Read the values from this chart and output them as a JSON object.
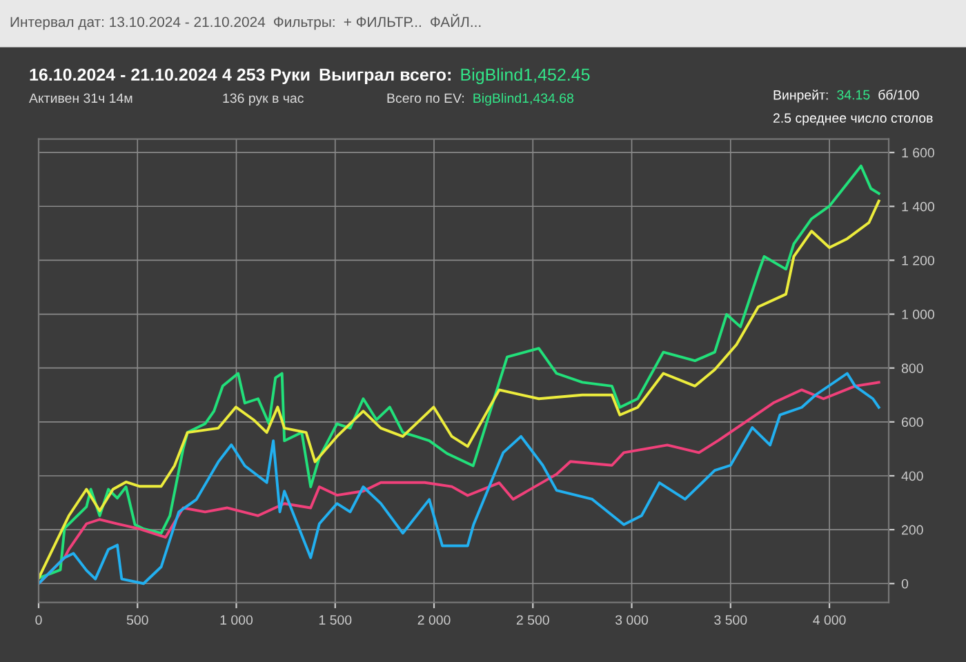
{
  "chart_data": {
    "type": "line",
    "annotations": [
      "Интервал дат: 13.10.2024 - 21.10.2024",
      "Фильтры:",
      "+ ФИЛЬТР...",
      "ФАЙЛ...",
      "16.10.2024 - 21.10.2024",
      "Активен 31ч 14м",
      "4 253 Руки",
      "136 рук в час",
      "Выиграл всего:",
      "BigBlind1,452.45",
      "Всего по EV:",
      "BigBlind1,434.68",
      "Винрейт:",
      "34.15",
      "бб/100",
      "2.5 среднее число столов"
    ],
    "series": [
      {
        "color": "#22e07a",
        "x": [
          0,
          110,
          131,
          176,
          242,
          264,
          309,
          353,
          398,
          442,
          487,
          531,
          620,
          664,
          731,
          753,
          842,
          887,
          931,
          1009,
          1043,
          1110,
          1165,
          1198,
          1231,
          1243,
          1331,
          1376,
          1420,
          1509,
          1576,
          1642,
          1709,
          1776,
          1842,
          1909,
          1976,
          2065,
          2198,
          2370,
          2530,
          2620,
          2750,
          2900,
          2940,
          3030,
          3160,
          3320,
          3420,
          3480,
          3550,
          3640,
          3670,
          3780,
          3820,
          3910,
          4000,
          4100,
          4160,
          4210,
          4250
        ],
        "values": [
          20,
          51,
          205,
          238,
          285,
          350,
          252,
          350,
          317,
          359,
          219,
          203,
          187,
          252,
          500,
          561,
          593,
          640,
          733,
          780,
          670,
          686,
          593,
          764,
          780,
          530,
          561,
          359,
          468,
          593,
          577,
          686,
          608,
          655,
          561,
          546,
          530,
          483,
          437,
          841,
          873,
          780,
          747,
          733,
          654,
          686,
          859,
          827,
          859,
          999,
          953,
          1153,
          1214,
          1167,
          1261,
          1354,
          1401,
          1494,
          1550,
          1466,
          1448
        ]
      },
      {
        "color": "#ecec3c",
        "x": [
          0,
          153,
          242,
          309,
          376,
          442,
          509,
          620,
          687,
          753,
          909,
          998,
          1087,
          1154,
          1209,
          1243,
          1353,
          1398,
          1509,
          1642,
          1731,
          1842,
          1998,
          2090,
          2170,
          2330,
          2530,
          2750,
          2900,
          2940,
          3030,
          3160,
          3320,
          3420,
          3530,
          3640,
          3780,
          3820,
          3910,
          4000,
          4090,
          4200,
          4250
        ],
        "values": [
          20,
          252,
          350,
          270,
          350,
          377,
          361,
          361,
          437,
          561,
          577,
          655,
          608,
          561,
          655,
          577,
          561,
          452,
          546,
          640,
          577,
          546,
          655,
          546,
          509,
          719,
          686,
          700,
          700,
          626,
          654,
          780,
          733,
          794,
          887,
          1027,
          1074,
          1214,
          1308,
          1247,
          1280,
          1340,
          1420
        ]
      },
      {
        "color": "#f0407a",
        "x": [
          0,
          131,
          153,
          242,
          309,
          398,
          509,
          642,
          731,
          842,
          953,
          1110,
          1243,
          1376,
          1420,
          1509,
          1642,
          1731,
          1953,
          2090,
          2170,
          2330,
          2400,
          2620,
          2690,
          2900,
          2960,
          3180,
          3340,
          3440,
          3590,
          3720,
          3860,
          3970,
          4130,
          4250
        ],
        "values": [
          0,
          96,
          127,
          222,
          238,
          222,
          203,
          172,
          281,
          266,
          281,
          252,
          297,
          281,
          359,
          328,
          343,
          375,
          375,
          360,
          327,
          374,
          313,
          406,
          453,
          439,
          486,
          514,
          486,
          532,
          607,
          672,
          719,
          686,
          733,
          747
        ]
      },
      {
        "color": "#22b0f0",
        "x": [
          0,
          131,
          176,
          242,
          287,
          353,
          398,
          420,
          531,
          620,
          709,
          798,
          909,
          975,
          1043,
          1154,
          1187,
          1220,
          1243,
          1376,
          1420,
          1509,
          1576,
          1642,
          1731,
          1842,
          1976,
          2042,
          2170,
          2200,
          2350,
          2440,
          2550,
          2620,
          2800,
          2960,
          3050,
          3140,
          3270,
          3420,
          3500,
          3610,
          3700,
          3750,
          3860,
          3930,
          4090,
          4130,
          4220,
          4250
        ],
        "values": [
          0,
          96,
          112,
          49,
          17,
          127,
          143,
          17,
          0,
          62,
          266,
          312,
          452,
          515,
          437,
          375,
          530,
          266,
          343,
          96,
          222,
          297,
          266,
          359,
          297,
          187,
          312,
          140,
          140,
          219,
          486,
          546,
          439,
          346,
          313,
          219,
          252,
          374,
          313,
          420,
          439,
          579,
          514,
          626,
          654,
          700,
          780,
          733,
          686,
          654
        ]
      }
    ],
    "xlim": [
      0,
      4300
    ],
    "ylim": [
      -70,
      1650
    ],
    "xticks": [
      0,
      500,
      {
        "value": 1000,
        "label": "1 000"
      },
      {
        "value": 1500,
        "label": "1 500"
      },
      {
        "value": 2000,
        "label": "2 000"
      },
      {
        "value": 2500,
        "label": "2 500"
      },
      {
        "value": 3000,
        "label": "3 000"
      },
      {
        "value": 3500,
        "label": "3 500"
      },
      {
        "value": 4000,
        "label": "4 000"
      }
    ],
    "yticks": [
      0,
      200,
      400,
      600,
      800,
      {
        "value": 1000,
        "label": "1 000"
      },
      {
        "value": 1200,
        "label": "1 200"
      },
      {
        "value": 1400,
        "label": "1 400"
      },
      {
        "value": 1600,
        "label": "1 600"
      }
    ],
    "grid": true
  }
}
